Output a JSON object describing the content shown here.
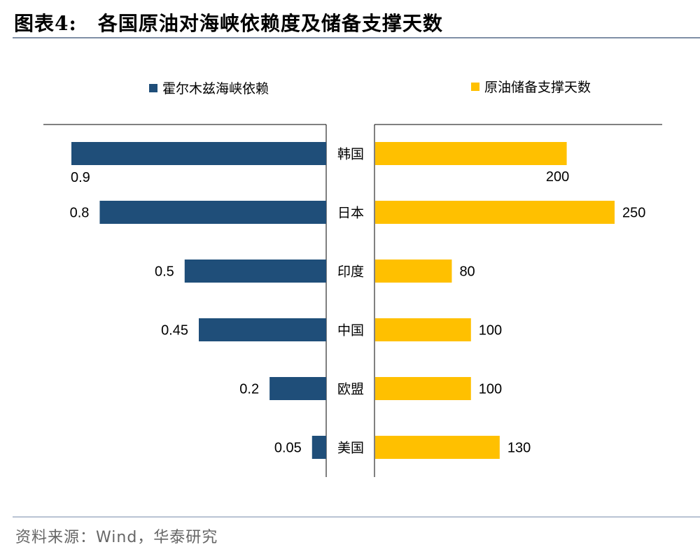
{
  "title": {
    "label": "图表4:",
    "text": "各国原油对海峡依赖度及储备支撑天数"
  },
  "source": "资料来源：Wind，华泰研究",
  "chart_data": {
    "type": "bar",
    "categories": [
      "韩国",
      "日本",
      "印度",
      "中国",
      "欧盟",
      "美国"
    ],
    "series": [
      {
        "name": "霍尔木兹海峡依赖",
        "values": [
          0.9,
          0.8,
          0.5,
          0.45,
          0.2,
          0.05
        ],
        "color": "#1f4e79",
        "direction": "left",
        "max": 0.9
      },
      {
        "name": "原油储备支撑天数",
        "values": [
          200,
          250,
          80,
          100,
          100,
          130
        ],
        "color": "#ffc000",
        "direction": "right",
        "max": 250
      }
    ],
    "data_labels": {
      "left": [
        "0.9",
        "0.8",
        "0.5",
        "0.45",
        "0.2",
        "0.05"
      ],
      "right": [
        "200",
        "250",
        "80",
        "100",
        "100",
        "130"
      ]
    },
    "title": "",
    "xlabel": "",
    "ylabel": "",
    "grid": false,
    "legend": "top"
  }
}
